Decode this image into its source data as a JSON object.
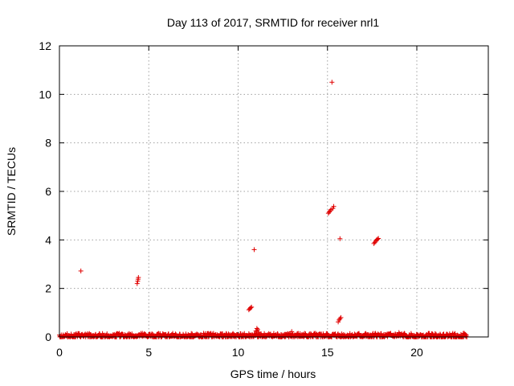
{
  "chart_data": {
    "type": "scatter",
    "title": "Day 113 of 2017, SRMTID for receiver nrl1",
    "xlabel": "GPS time / hours",
    "ylabel": "SRMTID / TECUs",
    "xlim": [
      0,
      24
    ],
    "ylim": [
      0,
      12
    ],
    "xticks": [
      "0",
      "5",
      "10",
      "15",
      "20"
    ],
    "yticks": [
      "0",
      "2",
      "4",
      "6",
      "8",
      "10",
      "12"
    ],
    "grid": true,
    "marker": "plus",
    "color": "#e00000",
    "baseline": {
      "x_start": 0.0,
      "x_end": 22.8,
      "y_min": 0.0,
      "y_max": 0.15
    },
    "series": [
      {
        "points": [
          [
            1.2,
            2.72
          ],
          [
            4.35,
            2.2
          ],
          [
            4.38,
            2.3
          ],
          [
            4.4,
            2.38
          ],
          [
            4.42,
            2.45
          ],
          [
            10.6,
            1.12
          ],
          [
            10.65,
            1.16
          ],
          [
            10.7,
            1.2
          ],
          [
            10.75,
            1.23
          ],
          [
            10.9,
            3.6
          ],
          [
            11.0,
            0.25
          ],
          [
            11.05,
            0.35
          ],
          [
            11.1,
            0.3
          ],
          [
            11.15,
            0.2
          ],
          [
            13.0,
            0.22
          ],
          [
            15.05,
            5.1
          ],
          [
            15.1,
            5.15
          ],
          [
            15.15,
            5.2
          ],
          [
            15.2,
            5.25
          ],
          [
            15.3,
            5.3
          ],
          [
            15.35,
            5.38
          ],
          [
            15.25,
            10.5
          ],
          [
            15.6,
            0.62
          ],
          [
            15.65,
            0.7
          ],
          [
            15.7,
            0.75
          ],
          [
            15.75,
            0.8
          ],
          [
            15.7,
            4.05
          ],
          [
            17.6,
            3.85
          ],
          [
            17.65,
            3.9
          ],
          [
            17.7,
            3.95
          ],
          [
            17.75,
            4.0
          ],
          [
            17.8,
            4.03
          ],
          [
            17.85,
            4.06
          ],
          [
            19.0,
            0.18
          ],
          [
            21.5,
            0.12
          ]
        ]
      }
    ]
  }
}
